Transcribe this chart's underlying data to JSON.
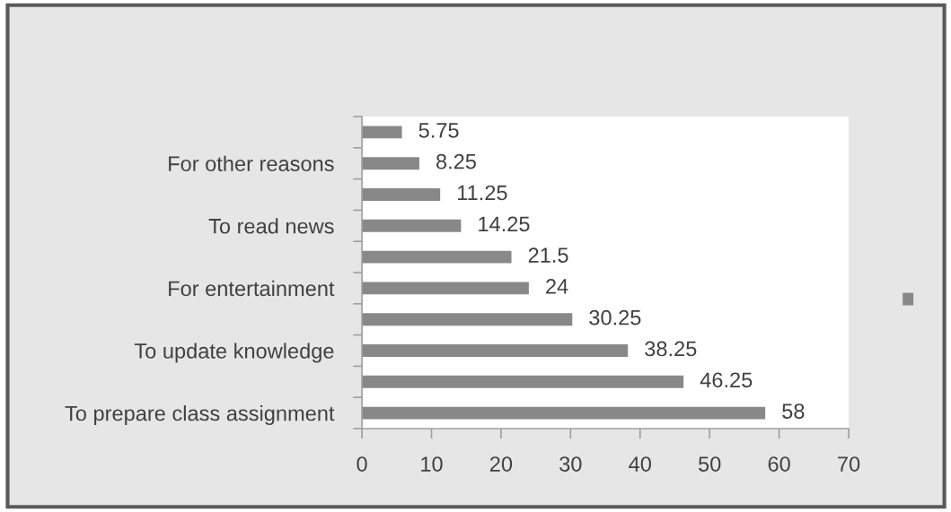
{
  "chart_data": {
    "type": "bar",
    "orientation": "horizontal",
    "categories": [
      null,
      "For other reasons",
      null,
      "To read news",
      null,
      "For entertainment",
      null,
      "To update knowledge",
      null,
      "To prepare class assignment"
    ],
    "series": [
      {
        "color": "#888888",
        "values": [
          5.75,
          8.25,
          11.25,
          14.25,
          21.5,
          24,
          30.25,
          38.25,
          46.25,
          58
        ]
      }
    ],
    "xlim": [
      0,
      70
    ],
    "xticks": [
      0,
      10,
      20,
      30,
      40,
      50,
      60,
      70
    ],
    "data_labels": true,
    "grid": false
  }
}
